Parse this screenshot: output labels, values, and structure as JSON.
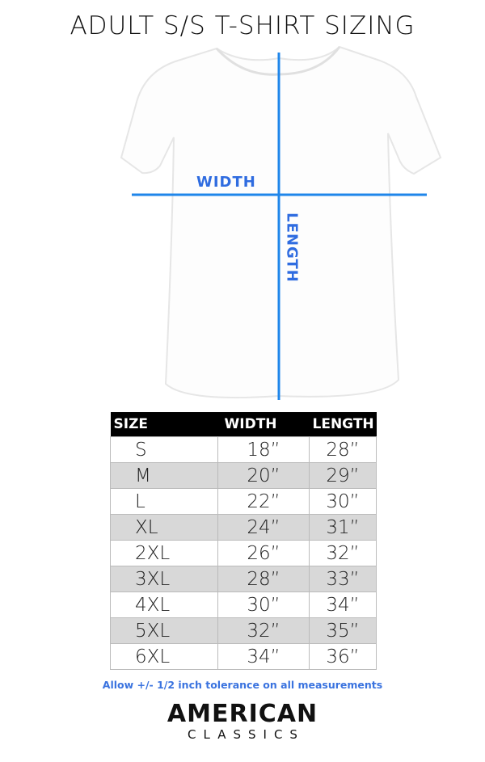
{
  "title": "ADULT S/S T-SHIRT SIZING",
  "diagram": {
    "width_label": "WIDTH",
    "length_label": "LENGTH",
    "line_color": "#1f86ea"
  },
  "table": {
    "headers": [
      "SIZE",
      "WIDTH",
      "LENGTH"
    ],
    "rows": [
      [
        "S",
        "18”",
        "28”"
      ],
      [
        "M",
        "20”",
        "29”"
      ],
      [
        "L",
        "22”",
        "30”"
      ],
      [
        "XL",
        "24”",
        "31”"
      ],
      [
        "2XL",
        "26”",
        "32”"
      ],
      [
        "3XL",
        "28”",
        "33”"
      ],
      [
        "4XL",
        "30”",
        "34”"
      ],
      [
        "5XL",
        "32”",
        "35”"
      ],
      [
        "6XL",
        "34”",
        "36”"
      ]
    ]
  },
  "note": "Allow +/- 1/2 inch tolerance on all measurements",
  "logo": {
    "line1": "AMERICAN",
    "line2": "CLASSICS"
  }
}
